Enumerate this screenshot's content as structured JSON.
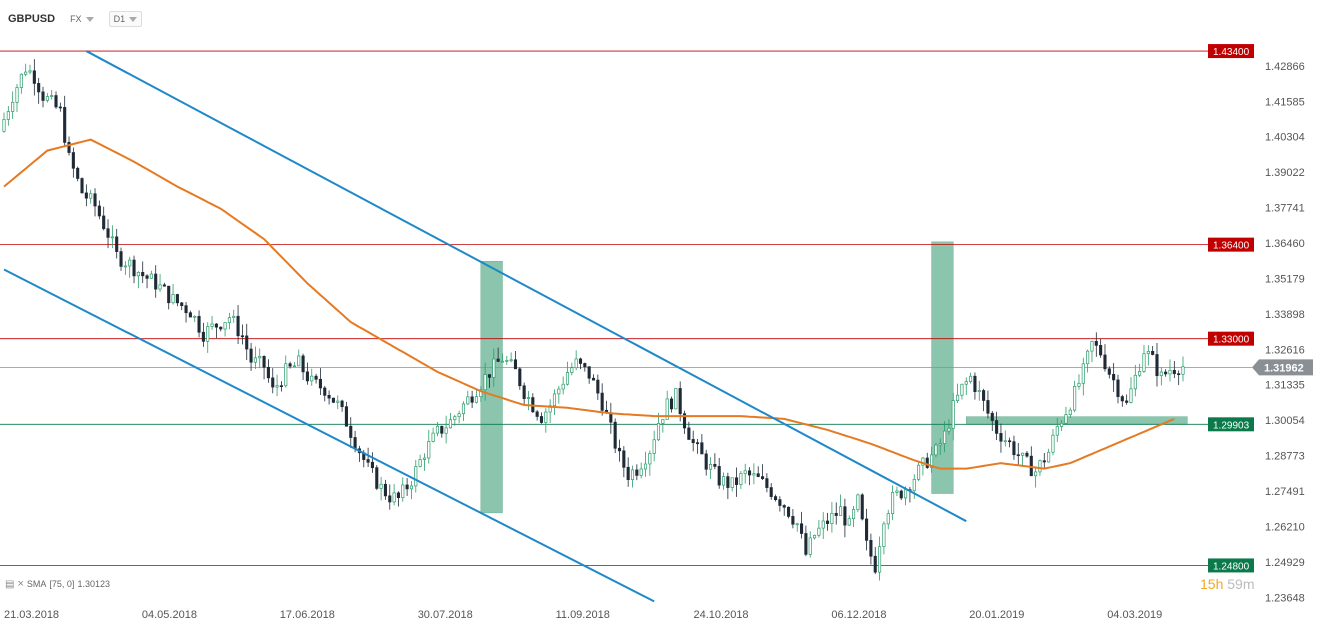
{
  "header": {
    "symbol": "GBPUSD",
    "market": "FX",
    "interval": "D1"
  },
  "indicator": {
    "icon_settings": "settings-icon",
    "icon_close": "close-icon",
    "label": "SMA",
    "params": "[75, 0]",
    "value": "1.30123"
  },
  "timer": {
    "hours": "15h",
    "minutes": "59m"
  },
  "colors": {
    "up": "#2a9d6a",
    "down": "#1f2a36",
    "sma": "#e67a22",
    "channel": "#1e88c9",
    "resistance": "#c00000",
    "support": "#0b7a4b",
    "zone": "#7fbfa5",
    "current": "#8a8f95"
  },
  "chart_data": {
    "type": "candlestick",
    "instrument": "GBPUSD",
    "x_dates": [
      "21.03.2018",
      "04.05.2018",
      "17.06.2018",
      "30.07.2018",
      "11.09.2018",
      "24.10.2018",
      "06.12.2018",
      "20.01.2019",
      "04.03.2019"
    ],
    "y_ticks": [
      "1.42866",
      "1.41585",
      "1.40304",
      "1.39022",
      "1.37741",
      "1.36460",
      "1.35179",
      "1.33898",
      "1.32616",
      "1.31335",
      "1.30054",
      "1.28773",
      "1.27491",
      "1.26210",
      "1.24929",
      "1.23648"
    ],
    "ylim": [
      1.2355,
      1.438
    ],
    "current_price": 1.31962,
    "horizontal_levels": [
      {
        "label": "1.43400",
        "value": 1.434,
        "kind": "resistance"
      },
      {
        "label": "1.36400",
        "value": 1.364,
        "kind": "resistance"
      },
      {
        "label": "1.33000",
        "value": 1.33,
        "kind": "resistance"
      },
      {
        "label": "1.29903",
        "value": 1.29903,
        "kind": "support"
      },
      {
        "label": "1.24800",
        "value": 1.248,
        "kind": "support"
      }
    ],
    "price_path": [
      [
        0,
        1.405
      ],
      [
        3,
        1.418
      ],
      [
        6,
        1.428
      ],
      [
        8,
        1.425
      ],
      [
        10,
        1.418
      ],
      [
        14,
        1.412
      ],
      [
        16,
        1.395
      ],
      [
        19,
        1.383
      ],
      [
        22,
        1.378
      ],
      [
        25,
        1.368
      ],
      [
        27,
        1.36
      ],
      [
        30,
        1.357
      ],
      [
        33,
        1.353
      ],
      [
        36,
        1.35
      ],
      [
        40,
        1.344
      ],
      [
        44,
        1.34
      ],
      [
        47,
        1.332
      ],
      [
        50,
        1.335
      ],
      [
        53,
        1.338
      ],
      [
        56,
        1.331
      ],
      [
        58,
        1.322
      ],
      [
        61,
        1.32
      ],
      [
        63,
        1.311
      ],
      [
        66,
        1.318
      ],
      [
        69,
        1.321
      ],
      [
        72,
        1.314
      ],
      [
        75,
        1.312
      ],
      [
        78,
        1.306
      ],
      [
        80,
        1.3
      ],
      [
        82,
        1.293
      ],
      [
        85,
        1.283
      ],
      [
        88,
        1.276
      ],
      [
        90,
        1.273
      ],
      [
        92,
        1.272
      ],
      [
        95,
        1.279
      ],
      [
        98,
        1.289
      ],
      [
        101,
        1.296
      ],
      [
        104,
        1.3
      ],
      [
        107,
        1.306
      ],
      [
        110,
        1.312
      ],
      [
        113,
        1.318
      ],
      [
        116,
        1.323
      ],
      [
        119,
        1.318
      ],
      [
        121,
        1.311
      ],
      [
        123,
        1.306
      ],
      [
        125,
        1.302
      ],
      [
        127,
        1.306
      ],
      [
        129,
        1.312
      ],
      [
        131,
        1.318
      ],
      [
        133,
        1.321
      ],
      [
        136,
        1.317
      ],
      [
        139,
        1.307
      ],
      [
        141,
        1.297
      ],
      [
        143,
        1.287
      ],
      [
        145,
        1.281
      ],
      [
        147,
        1.283
      ],
      [
        150,
        1.29
      ],
      [
        152,
        1.3
      ],
      [
        154,
        1.306
      ],
      [
        156,
        1.309
      ],
      [
        158,
        1.3
      ],
      [
        160,
        1.292
      ],
      [
        163,
        1.285
      ],
      [
        166,
        1.279
      ],
      [
        169,
        1.277
      ],
      [
        172,
        1.281
      ],
      [
        175,
        1.279
      ],
      [
        178,
        1.275
      ],
      [
        181,
        1.27
      ],
      [
        184,
        1.263
      ],
      [
        186,
        1.252
      ],
      [
        188,
        1.259
      ],
      [
        191,
        1.264
      ],
      [
        194,
        1.268
      ],
      [
        196,
        1.262
      ],
      [
        198,
        1.271
      ],
      [
        200,
        1.255
      ],
      [
        202,
        1.248
      ],
      [
        204,
        1.266
      ],
      [
        206,
        1.272
      ],
      [
        209,
        1.276
      ],
      [
        212,
        1.282
      ],
      [
        214,
        1.286
      ],
      [
        216,
        1.289
      ],
      [
        218,
        1.295
      ],
      [
        220,
        1.305
      ],
      [
        222,
        1.312
      ],
      [
        224,
        1.316
      ],
      [
        226,
        1.31
      ],
      [
        228,
        1.303
      ],
      [
        230,
        1.297
      ],
      [
        233,
        1.292
      ],
      [
        236,
        1.286
      ],
      [
        239,
        1.282
      ],
      [
        242,
        1.289
      ],
      [
        244,
        1.298
      ],
      [
        246,
        1.304
      ],
      [
        248,
        1.31
      ],
      [
        250,
        1.318
      ],
      [
        252,
        1.328
      ],
      [
        254,
        1.325
      ],
      [
        256,
        1.318
      ],
      [
        258,
        1.312
      ],
      [
        260,
        1.306
      ],
      [
        262,
        1.316
      ],
      [
        264,
        1.326
      ],
      [
        266,
        1.322
      ],
      [
        268,
        1.316
      ],
      [
        270,
        1.319
      ],
      [
        272,
        1.32
      ]
    ],
    "sma_75_path": [
      [
        0,
        1.385
      ],
      [
        10,
        1.398
      ],
      [
        20,
        1.402
      ],
      [
        30,
        1.394
      ],
      [
        40,
        1.385
      ],
      [
        50,
        1.377
      ],
      [
        60,
        1.366
      ],
      [
        70,
        1.35
      ],
      [
        80,
        1.336
      ],
      [
        90,
        1.327
      ],
      [
        100,
        1.318
      ],
      [
        110,
        1.311
      ],
      [
        120,
        1.306
      ],
      [
        130,
        1.305
      ],
      [
        140,
        1.303
      ],
      [
        150,
        1.302
      ],
      [
        160,
        1.302
      ],
      [
        170,
        1.302
      ],
      [
        180,
        1.301
      ],
      [
        190,
        1.297
      ],
      [
        200,
        1.292
      ],
      [
        210,
        1.286
      ],
      [
        216,
        1.283
      ],
      [
        222,
        1.283
      ],
      [
        230,
        1.285
      ],
      [
        240,
        1.283
      ],
      [
        246,
        1.285
      ],
      [
        252,
        1.289
      ],
      [
        258,
        1.293
      ],
      [
        264,
        1.297
      ],
      [
        270,
        1.301
      ]
    ],
    "channel_upper": [
      [
        19,
        1.434
      ],
      [
        222,
        1.264
      ]
    ],
    "channel_lower": [
      [
        0,
        1.355
      ],
      [
        150,
        1.235
      ]
    ],
    "green_zones": [
      {
        "start": 110,
        "end": 115,
        "top": 1.358,
        "bottom": 1.267
      },
      {
        "start": 214,
        "end": 219,
        "top": 1.365,
        "bottom": 1.274
      },
      {
        "start": 222,
        "end": 273,
        "top": 1.3018,
        "bottom": 1.299
      }
    ],
    "grid": false,
    "legend": "none"
  }
}
